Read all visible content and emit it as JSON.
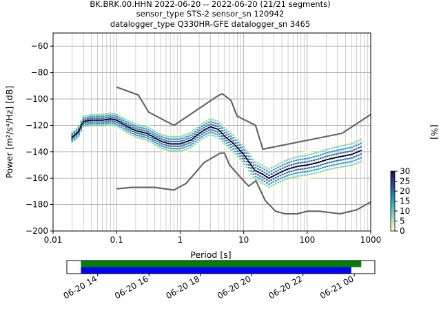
{
  "title_lines": [
    "BK.BRK.00.HHN   2022-06-20 -- 2022-06-20  (21/21 segments)",
    "sensor_type STS-2 sensor_sn 120942",
    "datalogger_type Q330HR-GFE datalogger_sn 3465"
  ],
  "colors": {
    "noise_model": "#666666",
    "mean_line": "#000000",
    "grid": "#b0b0b0",
    "timeline_top": "#008000",
    "timeline_bottom": "#0000ff"
  },
  "chart_data": [
    {
      "type": "heatmap",
      "xlabel": "Period [s]",
      "ylabel": "Power [m²/s⁴/Hz] [dB]",
      "xscale": "log",
      "xlim": [
        0.01,
        1000
      ],
      "ylim": [
        -200,
        -50
      ],
      "x_ticks": [
        {
          "value": 0.01,
          "label": "0.01"
        },
        {
          "value": 0.1,
          "label": "0.1"
        },
        {
          "value": 1,
          "label": "1"
        },
        {
          "value": 10,
          "label": "10"
        },
        {
          "value": 100,
          "label": "100"
        },
        {
          "value": 1000,
          "label": "1000"
        }
      ],
      "y_ticks": [
        {
          "value": -60,
          "label": "−60"
        },
        {
          "value": -80,
          "label": "−80"
        },
        {
          "value": -100,
          "label": "−100"
        },
        {
          "value": -120,
          "label": "−120"
        },
        {
          "value": -140,
          "label": "−140"
        },
        {
          "value": -160,
          "label": "−160"
        },
        {
          "value": -180,
          "label": "−180"
        },
        {
          "value": -200,
          "label": "−200"
        }
      ],
      "grid": true,
      "high_noise_model": {
        "x": [
          0.1,
          0.22,
          0.32,
          0.8,
          3.8,
          4.6,
          6.3,
          7.9,
          15.4,
          20,
          354.8,
          10000
        ],
        "y": [
          -91,
          -97,
          -110,
          -120,
          -98,
          -96,
          -101,
          -113,
          -120,
          -138,
          -126,
          -80
        ]
      },
      "low_noise_model": {
        "x": [
          0.1,
          0.17,
          0.4,
          0.8,
          1.24,
          2.4,
          4.3,
          5,
          6,
          10,
          12,
          15.6,
          21.9,
          31.6,
          45,
          70,
          101,
          154,
          328,
          600,
          1000
        ],
        "y": [
          -168,
          -167,
          -167,
          -169,
          -164,
          -148,
          -141,
          -141,
          -150,
          -162,
          -166,
          -162,
          -177,
          -185,
          -187,
          -187,
          -185,
          -185,
          -187,
          -184,
          -178
        ]
      },
      "mean_psd": {
        "x": [
          0.02,
          0.025,
          0.03,
          0.04,
          0.06,
          0.08,
          0.1,
          0.15,
          0.2,
          0.3,
          0.5,
          0.7,
          1,
          1.5,
          2,
          2.5,
          3,
          4,
          5,
          7,
          10,
          15,
          20,
          25,
          30,
          40,
          50,
          70,
          100,
          150,
          200,
          300,
          500,
          700
        ],
        "y": [
          -129,
          -125,
          -117,
          -116,
          -116,
          -115,
          -116,
          -121,
          -124,
          -126,
          -132,
          -134,
          -134,
          -131,
          -126,
          -123,
          -121,
          -123,
          -128,
          -134,
          -142,
          -154,
          -157,
          -160,
          -158,
          -155,
          -153,
          -151,
          -150,
          -148,
          -146,
          -144,
          -142,
          -139
        ]
      },
      "spread_db": 2.5,
      "colorbar": {
        "label": "[%]",
        "min": 0,
        "max": 30,
        "ticks": [
          {
            "value": 0,
            "label": "0"
          },
          {
            "value": 5,
            "label": "5"
          },
          {
            "value": 10,
            "label": "10"
          },
          {
            "value": 15,
            "label": "15"
          },
          {
            "value": 20,
            "label": "20"
          },
          {
            "value": 25,
            "label": "25"
          },
          {
            "value": 30,
            "label": "30"
          }
        ],
        "stops": [
          "#ffffcc",
          "#c7e9b4",
          "#7fcdbb",
          "#41b6c4",
          "#1d91c0",
          "#225ea8",
          "#253494",
          "#2a0c3d"
        ]
      }
    },
    {
      "type": "bar",
      "name": "data availability timeline",
      "xlim_hours": [
        12.8,
        24.8
      ],
      "x_ticks": [
        {
          "value": 14,
          "label": "06-20 14"
        },
        {
          "value": 16,
          "label": "06-20 16"
        },
        {
          "value": 18,
          "label": "06-20 18"
        },
        {
          "value": 20,
          "label": "06-20 20"
        },
        {
          "value": 22,
          "label": "06-20 22"
        },
        {
          "value": 24,
          "label": "06-21 00"
        }
      ],
      "bars": [
        {
          "start_hour": 13.35,
          "end_hour": 24.27,
          "color": "#008000"
        },
        {
          "start_hour": 13.35,
          "end_hour": 23.88,
          "color": "#0000ff"
        }
      ]
    }
  ]
}
